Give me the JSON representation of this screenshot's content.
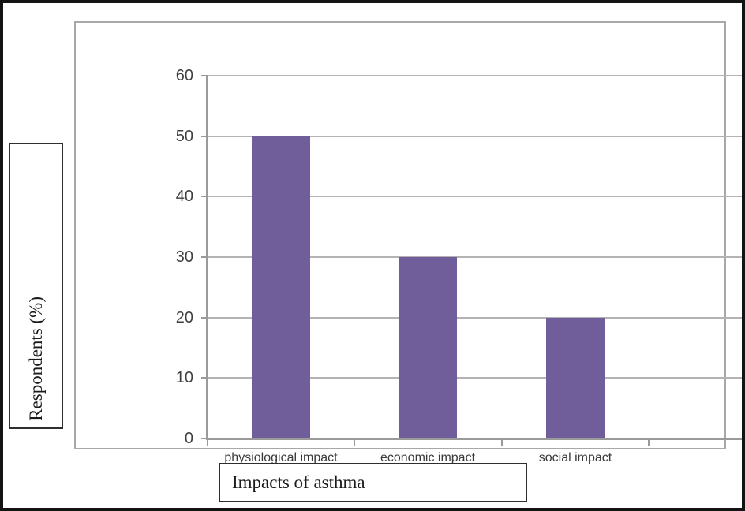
{
  "chart_data": {
    "type": "bar",
    "title": "",
    "categories": [
      "physiological impact",
      "economic impact",
      "social impact"
    ],
    "values": [
      50,
      30,
      20
    ],
    "xlabel": "Impacts of asthma",
    "ylabel": "Respondents (%)",
    "ylim": [
      0,
      60
    ],
    "yticks": [
      0,
      10,
      20,
      30,
      40,
      50,
      60
    ],
    "x_slots": 4,
    "grid": "horizontal",
    "legend": "none",
    "bar_color": "#6f5e99"
  },
  "colors": {
    "bar": "#6f5e99",
    "frame": "#131313",
    "panel_border": "#a8a8a8",
    "gridline": "#b4b2b2",
    "axis_line": "#9a9a9a",
    "tick_label_text": "#3f3f3f",
    "title_text": "#1b1b1b"
  }
}
